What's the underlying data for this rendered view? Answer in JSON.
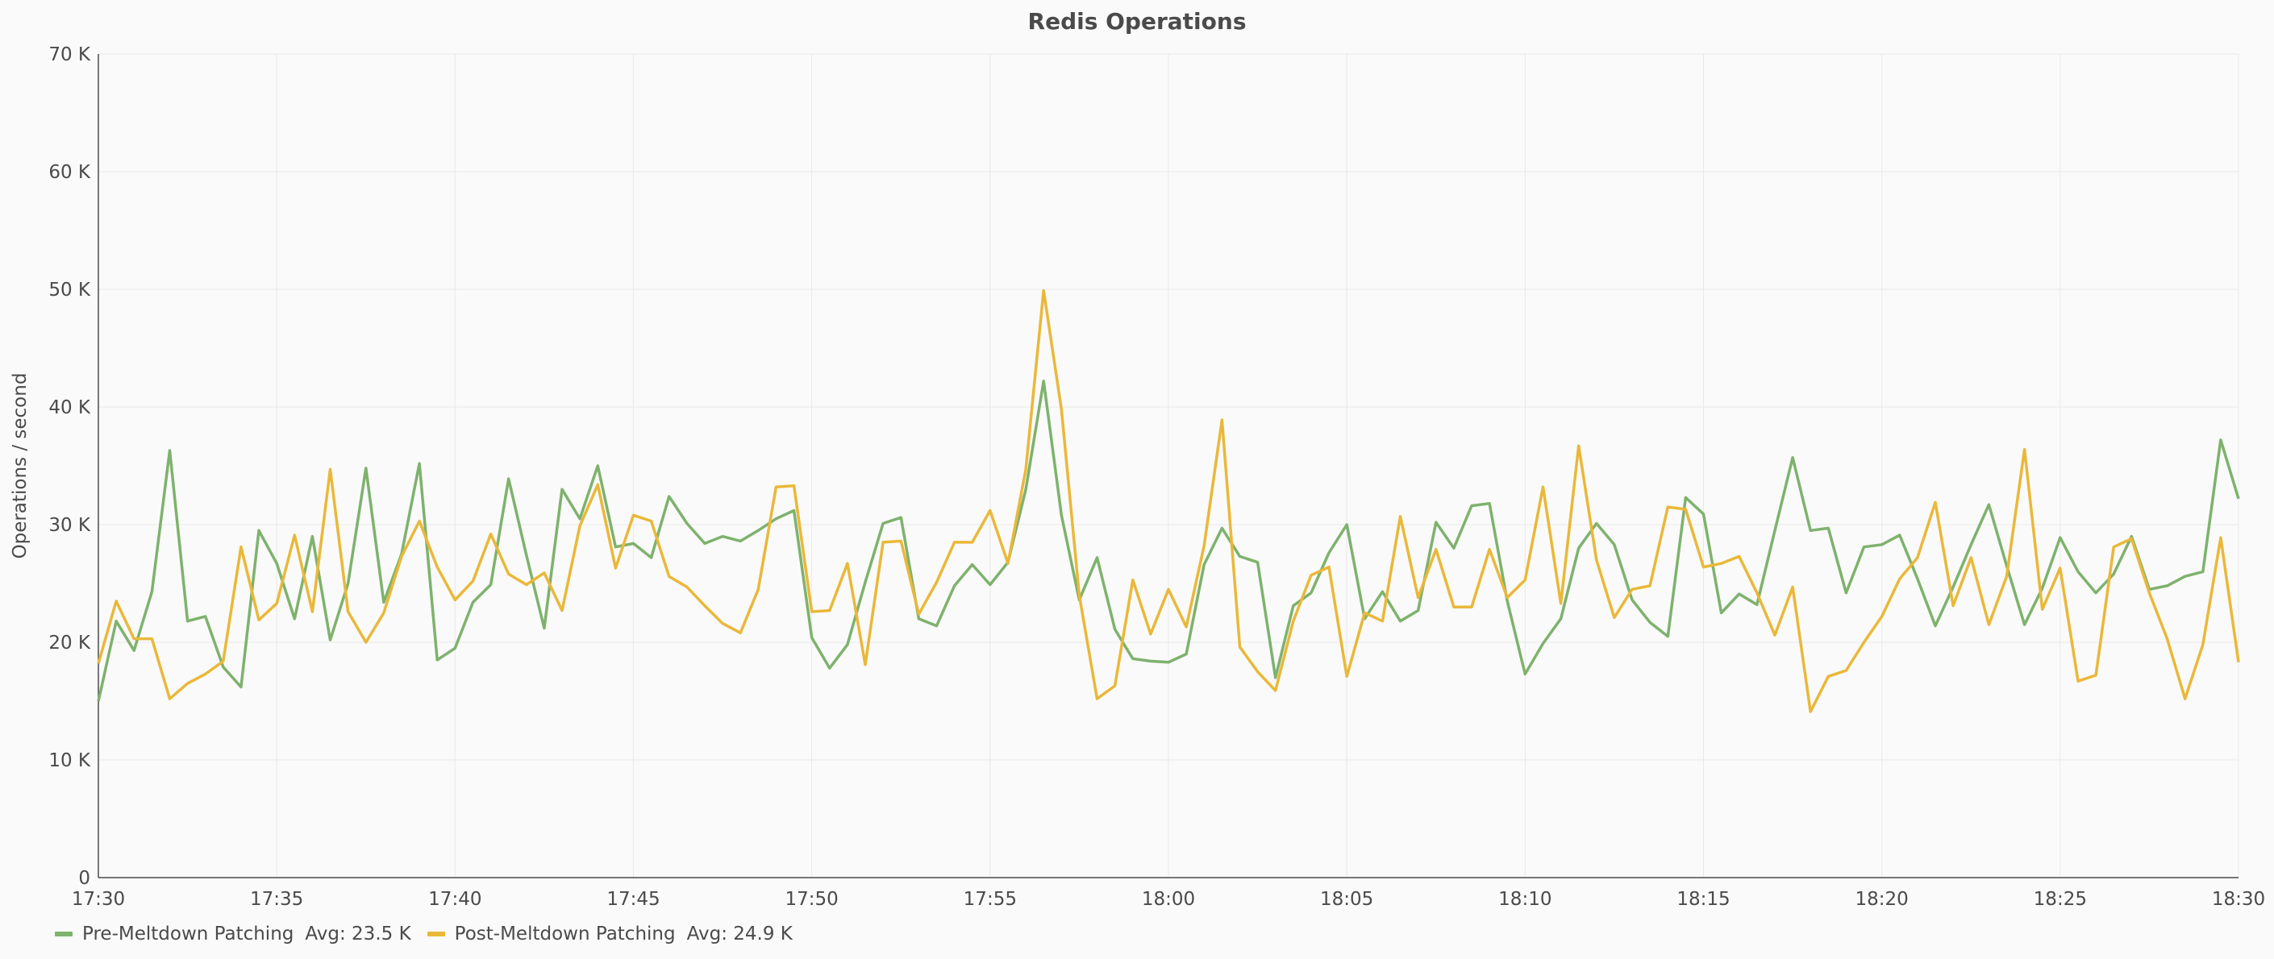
{
  "chart_data": {
    "type": "line",
    "title": "Redis Operations",
    "ylabel": "Operations / second",
    "xlabel": "",
    "x_start": "17:30",
    "x_end": "18:30",
    "x_ticks": [
      "17:30",
      "17:35",
      "17:40",
      "17:45",
      "17:50",
      "17:55",
      "18:00",
      "18:05",
      "18:10",
      "18:15",
      "18:20",
      "18:25",
      "18:30"
    ],
    "y_ticks": [
      0,
      10000,
      20000,
      30000,
      40000,
      50000,
      60000,
      70000
    ],
    "y_tick_labels": [
      "0",
      "10 K",
      "20 K",
      "30 K",
      "40 K",
      "50 K",
      "60 K",
      "70 K"
    ],
    "ylim": [
      0,
      70000
    ],
    "grid": true,
    "legend_position": "bottom-left",
    "series": [
      {
        "name": "Pre-Meltdown Patching",
        "avg_label": "Avg: 23.5 K",
        "color": "#7eb26d",
        "times": [
          "17:30:00",
          "17:30:30",
          "17:31:00",
          "17:31:30",
          "17:32:00",
          "17:32:30",
          "17:33:00",
          "17:33:30",
          "17:34:00",
          "17:34:30",
          "17:35:00",
          "17:35:30",
          "17:36:00",
          "17:36:30",
          "17:37:00",
          "17:37:30",
          "17:38:00",
          "17:38:30",
          "17:39:00",
          "17:39:30",
          "17:40:00",
          "17:40:30",
          "17:41:00",
          "17:41:30",
          "17:42:00",
          "17:42:30",
          "17:43:00",
          "17:43:30",
          "17:44:00",
          "17:44:30",
          "17:45:00",
          "17:45:30",
          "17:46:00",
          "17:46:30",
          "17:47:00",
          "17:47:30",
          "17:48:00",
          "17:48:30",
          "17:49:00",
          "17:49:30",
          "17:50:00",
          "17:50:30",
          "17:51:00",
          "17:51:30",
          "17:52:00",
          "17:52:30",
          "17:53:00",
          "17:53:30",
          "17:54:00",
          "17:54:30",
          "17:55:00",
          "17:55:30",
          "17:56:00",
          "17:56:30",
          "17:57:00",
          "17:57:30",
          "17:58:00",
          "17:58:30",
          "17:59:00",
          "17:59:30",
          "18:00:00",
          "18:00:30",
          "18:01:00",
          "18:01:30",
          "18:02:00",
          "18:02:30",
          "18:03:00",
          "18:03:30",
          "18:04:00",
          "18:04:30",
          "18:05:00",
          "18:05:30",
          "18:06:00",
          "18:06:30",
          "18:07:00",
          "18:07:30",
          "18:08:00",
          "18:08:30",
          "18:09:00",
          "18:09:30",
          "18:10:00",
          "18:10:30",
          "18:11:00",
          "18:11:30",
          "18:12:00",
          "18:12:30",
          "18:13:00",
          "18:13:30",
          "18:14:00",
          "18:14:30",
          "18:15:00",
          "18:15:30",
          "18:16:00",
          "18:16:30",
          "18:17:00",
          "18:17:30",
          "18:18:00",
          "18:18:30",
          "18:19:00",
          "18:19:30",
          "18:20:00",
          "18:20:30",
          "18:21:00",
          "18:21:30",
          "18:22:00",
          "18:22:30",
          "18:23:00",
          "18:23:30",
          "18:24:00",
          "18:24:30",
          "18:25:00",
          "18:25:30",
          "18:26:00",
          "18:26:30",
          "18:27:00",
          "18:27:30",
          "18:28:00",
          "18:28:30",
          "18:29:00",
          "18:29:30",
          "18:30:00"
        ],
        "values": [
          15000,
          21800,
          19300,
          24300,
          36300,
          21800,
          22200,
          17900,
          16200,
          29500,
          26700,
          22000,
          29000,
          20200,
          25000,
          34800,
          23400,
          27500,
          35200,
          18500,
          19500,
          23400,
          24900,
          33900,
          27400,
          21200,
          33000,
          30500,
          35000,
          28100,
          28400,
          27200,
          32400,
          30100,
          28400,
          29000,
          28600,
          29500,
          30500,
          31200,
          20400,
          17800,
          19800,
          25100,
          30100,
          30600,
          22000,
          21400,
          24800,
          26600,
          24900,
          26800,
          33000,
          42200,
          30800,
          23600,
          27200,
          21100,
          18600,
          18400,
          18300,
          19000,
          26600,
          29700,
          27300,
          26800,
          17000,
          23100,
          24200,
          27600,
          30000,
          22000,
          24300,
          21800,
          22700,
          30200,
          28000,
          31600,
          31800,
          23500,
          17300,
          19900,
          22000,
          28000,
          30100,
          28300,
          23600,
          21700,
          20500,
          32300,
          30900,
          22500,
          24100,
          23200,
          29500,
          35700,
          29500,
          29700,
          24200,
          28100,
          28300,
          29100,
          25400,
          21400,
          24700,
          28300,
          31700,
          26500,
          21500,
          24600,
          28900,
          26000,
          24200,
          25800,
          29000,
          24500,
          24800,
          25600,
          26000,
          37200,
          32200
        ]
      },
      {
        "name": "Post-Meltdown Patching",
        "avg_label": "Avg: 24.9 K",
        "color": "#eab839",
        "times": [
          "17:30:00",
          "17:30:30",
          "17:31:00",
          "17:31:30",
          "17:32:00",
          "17:32:30",
          "17:33:00",
          "17:33:30",
          "17:34:00",
          "17:34:30",
          "17:35:00",
          "17:35:30",
          "17:36:00",
          "17:36:30",
          "17:37:00",
          "17:37:30",
          "17:38:00",
          "17:38:30",
          "17:39:00",
          "17:39:30",
          "17:40:00",
          "17:40:30",
          "17:41:00",
          "17:41:30",
          "17:42:00",
          "17:42:30",
          "17:43:00",
          "17:43:30",
          "17:44:00",
          "17:44:30",
          "17:45:00",
          "17:45:30",
          "17:46:00",
          "17:46:30",
          "17:47:00",
          "17:47:30",
          "17:48:00",
          "17:48:30",
          "17:49:00",
          "17:49:30",
          "17:50:00",
          "17:50:30",
          "17:51:00",
          "17:51:30",
          "17:52:00",
          "17:52:30",
          "17:53:00",
          "17:53:30",
          "17:54:00",
          "17:54:30",
          "17:55:00",
          "17:55:30",
          "17:56:00",
          "17:56:30",
          "17:57:00",
          "17:57:30",
          "17:58:00",
          "17:58:30",
          "17:59:00",
          "17:59:30",
          "18:00:00",
          "18:00:30",
          "18:01:00",
          "18:01:30",
          "18:02:00",
          "18:02:30",
          "18:03:00",
          "18:03:30",
          "18:04:00",
          "18:04:30",
          "18:05:00",
          "18:05:30",
          "18:06:00",
          "18:06:30",
          "18:07:00",
          "18:07:30",
          "18:08:00",
          "18:08:30",
          "18:09:00",
          "18:09:30",
          "18:10:00",
          "18:10:30",
          "18:11:00",
          "18:11:30",
          "18:12:00",
          "18:12:30",
          "18:13:00",
          "18:13:30",
          "18:14:00",
          "18:14:30",
          "18:15:00",
          "18:15:30",
          "18:16:00",
          "18:16:30",
          "18:17:00",
          "18:17:30",
          "18:18:00",
          "18:18:30",
          "18:19:00",
          "18:19:30",
          "18:20:00",
          "18:20:30",
          "18:21:00",
          "18:21:30",
          "18:22:00",
          "18:22:30",
          "18:23:00",
          "18:23:30",
          "18:24:00",
          "18:24:30",
          "18:25:00",
          "18:25:30",
          "18:26:00",
          "18:26:30",
          "18:27:00",
          "18:27:30",
          "18:28:00",
          "18:28:30",
          "18:29:00",
          "18:29:30",
          "18:30:00"
        ],
        "values": [
          18200,
          23500,
          20300,
          20300,
          15200,
          16500,
          17300,
          18400,
          28100,
          21900,
          23300,
          29100,
          22600,
          34700,
          22600,
          20000,
          22500,
          27300,
          30300,
          26400,
          23600,
          25200,
          29200,
          25800,
          24900,
          25900,
          22700,
          29900,
          33400,
          26300,
          30800,
          30300,
          25600,
          24700,
          23100,
          21600,
          20800,
          24500,
          33200,
          33300,
          22600,
          22700,
          26700,
          18100,
          28500,
          28600,
          22400,
          25100,
          28500,
          28500,
          31200,
          26700,
          34700,
          49900,
          39800,
          24000,
          15200,
          16300,
          25300,
          20700,
          24500,
          21300,
          28200,
          38900,
          19600,
          17500,
          15900,
          21800,
          25700,
          26400,
          17100,
          22500,
          21800,
          30700,
          23800,
          27900,
          23000,
          23000,
          27900,
          23800,
          25300,
          33200,
          23300,
          36700,
          27000,
          22100,
          24500,
          24800,
          31500,
          31300,
          26400,
          26700,
          27300,
          24200,
          20600,
          24700,
          14100,
          17100,
          17600,
          20000,
          22200,
          25400,
          27200,
          31900,
          23100,
          27200,
          21500,
          25600,
          36400,
          22800,
          26300,
          16700,
          17200,
          28100,
          28800,
          24200,
          20300,
          15200,
          19800,
          28900,
          18300
        ]
      }
    ]
  }
}
